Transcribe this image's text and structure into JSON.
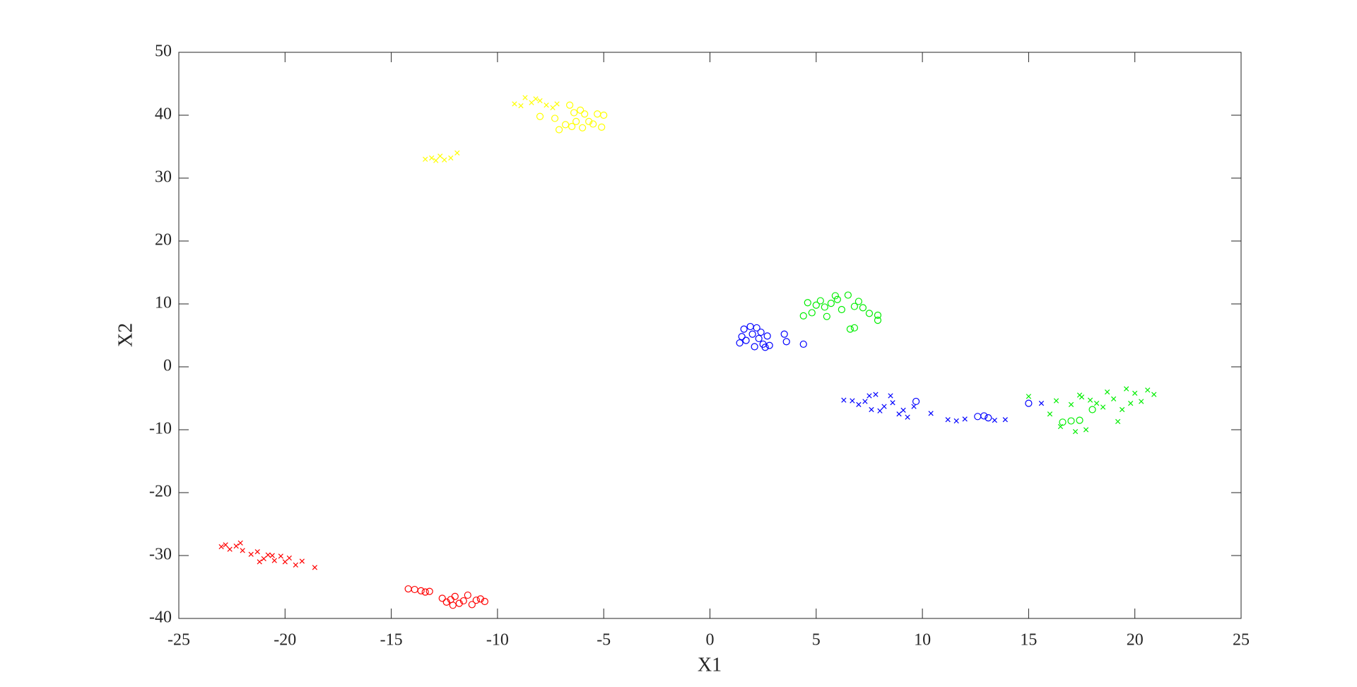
{
  "chart_data": {
    "type": "scatter",
    "x_label": "X1",
    "y_label": "X2",
    "xlim": [
      -25,
      25
    ],
    "ylim": [
      -40,
      50
    ],
    "xticks": [
      -25,
      -20,
      -15,
      -10,
      -5,
      0,
      5,
      10,
      15,
      20,
      25
    ],
    "yticks": [
      -40,
      -30,
      -20,
      -10,
      0,
      10,
      20,
      30,
      40,
      50
    ],
    "series": [
      {
        "color": "#ff0000",
        "marker": "x",
        "x": [
          -23,
          -22.8,
          -22.6,
          -22.3,
          -22.1,
          -22,
          -21.6,
          -21.3,
          -21,
          -20.8,
          -20.5,
          -20.2,
          -20,
          -19.8,
          -19.5,
          -19.2,
          -18.6,
          -21.2,
          -20.6
        ],
        "values": [
          -28.6,
          -28.3,
          -29,
          -28.5,
          -28,
          -29.2,
          -29.8,
          -29.4,
          -30.5,
          -29.9,
          -30.8,
          -30.1,
          -31,
          -30.4,
          -31.5,
          -30.9,
          -31.9,
          -31,
          -30
        ]
      },
      {
        "color": "#ff0000",
        "marker": "o",
        "x": [
          -14.2,
          -13.9,
          -13.6,
          -13.4,
          -13.2,
          -12.6,
          -12.4,
          -12.2,
          -12,
          -11.8,
          -11.6,
          -11.4,
          -11.2,
          -11,
          -10.8,
          -10.6,
          -12.1
        ],
        "values": [
          -35.3,
          -35.4,
          -35.6,
          -35.8,
          -35.7,
          -36.8,
          -37.4,
          -37,
          -36.5,
          -37.6,
          -37.2,
          -36.3,
          -37.8,
          -37.1,
          -36.9,
          -37.3,
          -37.9
        ]
      },
      {
        "color": "#ffff00",
        "marker": "x",
        "x": [
          -13.4,
          -13.1,
          -12.9,
          -12.7,
          -12.5,
          -12.2,
          -11.9,
          -9.2,
          -8.9,
          -8.7,
          -8.4,
          -8.2,
          -8,
          -7.7,
          -7.4,
          -7.2
        ],
        "values": [
          33,
          33.2,
          32.8,
          33.5,
          32.9,
          33.2,
          34,
          41.8,
          41.5,
          42.8,
          42,
          42.6,
          42.3,
          41.6,
          41.2,
          41.8
        ]
      },
      {
        "color": "#ffff00",
        "marker": "o",
        "x": [
          -8,
          -7.3,
          -7.1,
          -6.8,
          -6.6,
          -6.5,
          -6.3,
          -6.1,
          -6,
          -5.9,
          -5.7,
          -5.5,
          -5.3,
          -5.1,
          -5,
          -6.4
        ],
        "values": [
          39.8,
          39.5,
          37.7,
          38.5,
          41.6,
          38.2,
          39,
          40.8,
          38,
          40.2,
          39,
          38.6,
          40.2,
          38.1,
          40,
          40.4
        ]
      },
      {
        "color": "#0000ff",
        "marker": "x",
        "x": [
          6.3,
          6.7,
          7,
          7.3,
          7.5,
          7.6,
          7.8,
          8,
          8.2,
          8.5,
          8.6,
          8.9,
          9.1,
          9.3,
          9.6,
          10.4,
          11.2,
          11.6,
          12,
          13.4,
          13.9,
          15.6
        ],
        "values": [
          -5.3,
          -5.4,
          -6,
          -5.5,
          -4.6,
          -6.8,
          -4.4,
          -7,
          -6.3,
          -4.6,
          -5.7,
          -7.5,
          -6.9,
          -8,
          -6.3,
          -7.4,
          -8.4,
          -8.6,
          -8.3,
          -8.5,
          -8.4,
          -5.8
        ]
      },
      {
        "color": "#0000ff",
        "marker": "o",
        "x": [
          1.4,
          1.5,
          1.6,
          1.7,
          1.9,
          2,
          2.1,
          2.2,
          2.3,
          2.4,
          2.5,
          2.6,
          2.7,
          2.8,
          3.5,
          3.6,
          4.4,
          9.7,
          12.9,
          13.1,
          12.6,
          15
        ],
        "values": [
          3.8,
          4.8,
          6,
          4.2,
          6.4,
          5.2,
          3.2,
          6.2,
          4.5,
          5.5,
          3.6,
          3.1,
          4.9,
          3.4,
          5.2,
          4,
          3.6,
          -5.5,
          -7.8,
          -8.1,
          -7.9,
          -5.8
        ]
      },
      {
        "color": "#00ee00",
        "marker": "x",
        "x": [
          15,
          16,
          16.3,
          16.5,
          17,
          17.2,
          17.5,
          17.7,
          17.9,
          18.2,
          18.5,
          18.7,
          19,
          19.2,
          19.4,
          19.6,
          19.8,
          20,
          20.3,
          20.6,
          20.9,
          17.4
        ],
        "values": [
          -4.7,
          -7.5,
          -5.4,
          -9.5,
          -6,
          -10.3,
          -4.8,
          -10,
          -5.3,
          -5.8,
          -6.4,
          -4,
          -5.1,
          -8.7,
          -6.8,
          -3.5,
          -5.8,
          -4.2,
          -5.5,
          -3.7,
          -4.4,
          -4.5
        ]
      },
      {
        "color": "#00ee00",
        "marker": "o",
        "x": [
          4.4,
          4.6,
          4.8,
          5,
          5.2,
          5.4,
          5.5,
          5.7,
          5.9,
          6,
          6.2,
          6.5,
          6.6,
          6.8,
          7,
          7.2,
          7.5,
          7.9,
          7.9,
          17,
          17.4,
          18,
          16.6,
          6.8
        ],
        "values": [
          8.1,
          10.2,
          8.6,
          9.8,
          10.5,
          9.5,
          8,
          10.1,
          11.3,
          10.7,
          9.1,
          11.4,
          6,
          9.6,
          10.4,
          9.4,
          8.5,
          7.4,
          8.2,
          -8.6,
          -8.5,
          -6.8,
          -8.8,
          6.2
        ]
      }
    ]
  }
}
